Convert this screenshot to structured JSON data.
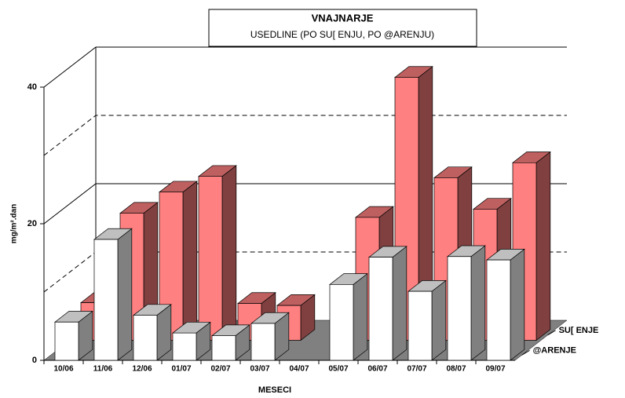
{
  "chart_data": {
    "type": "bar3d",
    "title": "VNAJNARJE",
    "subtitle": "USEDLINE (PO SU[ ENJU, PO @ARENJU)",
    "x_label": "MESECI",
    "y_label": "mg/m².dan",
    "categories": [
      "10/06",
      "11/06",
      "12/06",
      "01/07",
      "02/07",
      "03/07",
      "04/07",
      "05/07",
      "06/07",
      "07/07",
      "08/07",
      "09/07"
    ],
    "series": [
      {
        "name": "SU[ ENJE",
        "color": "#ff8080",
        "values": [
          5.5,
          18.6,
          21.7,
          24,
          5.4,
          5.1,
          null,
          18,
          38.5,
          23.8,
          19.2,
          26
        ]
      },
      {
        "name": "@ARENJE",
        "color": "#ffffff",
        "values": [
          5.6,
          17.7,
          6.6,
          4,
          3.6,
          5.4,
          null,
          11.1,
          15.1,
          10.1,
          15.2,
          14.7
        ]
      }
    ],
    "ylim": [
      0,
      40
    ],
    "yticks": [
      0,
      20,
      40
    ],
    "minor_yticks": [
      10,
      30
    ],
    "grid": true
  }
}
